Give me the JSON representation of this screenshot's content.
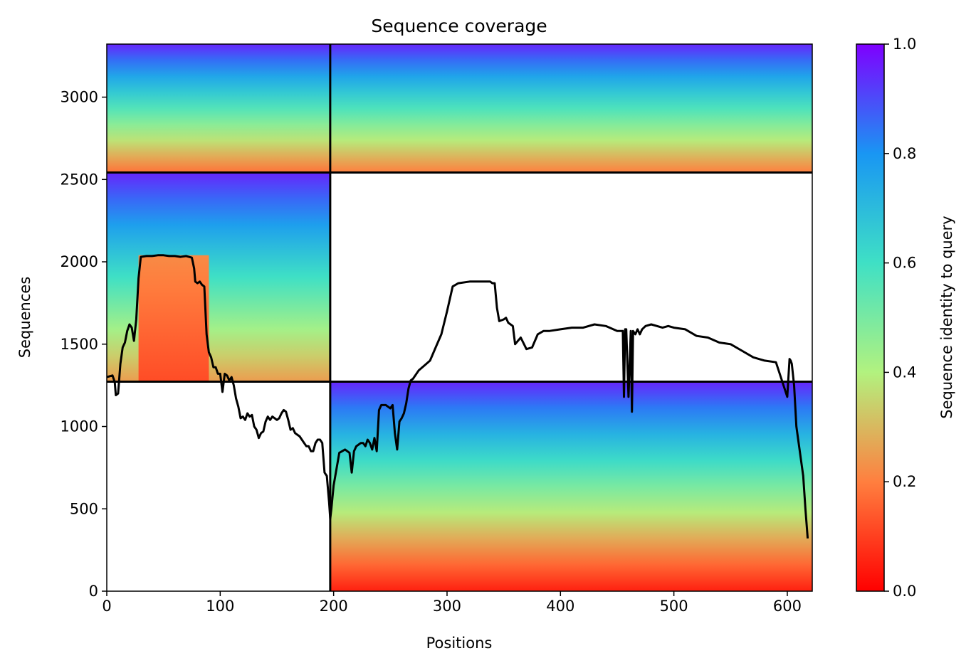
{
  "chart_data": {
    "type": "heatmap",
    "title": "Sequence coverage",
    "xlabel": "Positions",
    "ylabel": "Sequences",
    "xlim": [
      0,
      622
    ],
    "ylim": [
      0,
      3322
    ],
    "xticks": [
      "0",
      "100",
      "200",
      "300",
      "400",
      "500",
      "600"
    ],
    "xtick_values": [
      0,
      100,
      200,
      300,
      400,
      500,
      600
    ],
    "yticks": [
      "0",
      "500",
      "1000",
      "1500",
      "2000",
      "2500",
      "3000"
    ],
    "ytick_values": [
      0,
      500,
      1000,
      1500,
      2000,
      2500,
      3000
    ],
    "colorbar": {
      "label": "Sequence identity to query",
      "colormap": "rainbow_r",
      "range": [
        0.0,
        1.0
      ],
      "ticks": [
        "0.0",
        "0.2",
        "0.4",
        "0.6",
        "0.8",
        "1.0"
      ],
      "tick_values": [
        0.0,
        0.2,
        0.4,
        0.6,
        0.8,
        1.0
      ],
      "colors": [
        "#ff0000",
        "#ff7f3f",
        "#b2f27f",
        "#3fe0c5",
        "#1996f3",
        "#7f00ff"
      ]
    },
    "chain_boundaries": {
      "positions": [
        197
      ],
      "sequences": [
        1272,
        2542
      ]
    },
    "blocks": [
      {
        "name": "block-chain1-top",
        "x": [
          0,
          197
        ],
        "y": [
          2542,
          3322
        ],
        "identity_top": 0.95,
        "identity_bottom": 0.18
      },
      {
        "name": "block-chain2-top",
        "x": [
          197,
          622
        ],
        "y": [
          2542,
          3322
        ],
        "identity_top": 0.95,
        "identity_bottom": 0.2
      },
      {
        "name": "block-chain1-mid",
        "x": [
          0,
          197
        ],
        "y": [
          1272,
          2542
        ],
        "identity_top": 0.95,
        "identity_bottom": 0.25
      },
      {
        "name": "block-chain1-low-id",
        "x": [
          28,
          90
        ],
        "y": [
          1272,
          2040
        ],
        "identity_top": 0.22,
        "identity_bottom": 0.12
      },
      {
        "name": "block-chain2-bottom",
        "x": [
          197,
          622
        ],
        "y": [
          0,
          1272
        ],
        "identity_top": 0.95,
        "identity_bottom": 0.05
      }
    ],
    "coverage_line": {
      "x": [
        0,
        5,
        7,
        8,
        10,
        12,
        14,
        16,
        18,
        20,
        22,
        24,
        26,
        28,
        30,
        35,
        40,
        45,
        50,
        55,
        60,
        65,
        70,
        75,
        77,
        78,
        80,
        82,
        84,
        86,
        88,
        90,
        92,
        94,
        96,
        98,
        100,
        102,
        104,
        106,
        108,
        110,
        112,
        114,
        116,
        118,
        120,
        122,
        124,
        126,
        128,
        130,
        132,
        134,
        136,
        138,
        140,
        142,
        144,
        146,
        148,
        150,
        152,
        154,
        156,
        158,
        160,
        162,
        164,
        166,
        168,
        170,
        172,
        174,
        176,
        178,
        180,
        182,
        184,
        186,
        188,
        190,
        192,
        194,
        196,
        197,
        198,
        200,
        205,
        210,
        212,
        214,
        216,
        218,
        220,
        222,
        224,
        226,
        228,
        230,
        232,
        234,
        236,
        238,
        240,
        242,
        244,
        246,
        248,
        250,
        252,
        254,
        256,
        258,
        260,
        262,
        264,
        266,
        268,
        270,
        275,
        280,
        285,
        290,
        295,
        300,
        305,
        310,
        320,
        330,
        335,
        338,
        340,
        342,
        344,
        346,
        350,
        352,
        354,
        356,
        358,
        360,
        365,
        370,
        375,
        380,
        385,
        390,
        400,
        410,
        420,
        430,
        440,
        450,
        455,
        456,
        457,
        458,
        460,
        462,
        463,
        464,
        466,
        468,
        470,
        472,
        475,
        480,
        490,
        495,
        500,
        510,
        520,
        530,
        540,
        550,
        560,
        570,
        580,
        590,
        600,
        602,
        603,
        604,
        606,
        608,
        610,
        612,
        614,
        616,
        618,
        620,
        622
      ],
      "y": [
        1300,
        1310,
        1270,
        1190,
        1200,
        1380,
        1480,
        1510,
        1580,
        1620,
        1600,
        1520,
        1650,
        1900,
        2030,
        2035,
        2035,
        2040,
        2040,
        2035,
        2035,
        2030,
        2035,
        2025,
        1960,
        1880,
        1870,
        1880,
        1860,
        1850,
        1560,
        1450,
        1420,
        1360,
        1360,
        1320,
        1320,
        1210,
        1320,
        1310,
        1280,
        1300,
        1250,
        1170,
        1120,
        1050,
        1060,
        1040,
        1080,
        1060,
        1070,
        1000,
        980,
        930,
        960,
        970,
        1030,
        1060,
        1040,
        1060,
        1050,
        1040,
        1050,
        1080,
        1100,
        1090,
        1040,
        980,
        990,
        960,
        950,
        940,
        920,
        900,
        880,
        880,
        850,
        850,
        900,
        920,
        920,
        900,
        720,
        700,
        540,
        440,
        500,
        640,
        840,
        860,
        850,
        840,
        720,
        850,
        880,
        890,
        900,
        900,
        880,
        920,
        900,
        860,
        930,
        850,
        1100,
        1130,
        1130,
        1130,
        1120,
        1110,
        1130,
        960,
        860,
        1030,
        1050,
        1080,
        1140,
        1230,
        1280,
        1290,
        1340,
        1370,
        1400,
        1480,
        1560,
        1700,
        1850,
        1870,
        1880,
        1880,
        1880,
        1880,
        1870,
        1870,
        1720,
        1640,
        1650,
        1660,
        1630,
        1620,
        1610,
        1500,
        1540,
        1470,
        1480,
        1560,
        1580,
        1580,
        1590,
        1600,
        1600,
        1620,
        1610,
        1580,
        1580,
        1180,
        1590,
        1590,
        1180,
        1580,
        1090,
        1580,
        1560,
        1590,
        1560,
        1590,
        1610,
        1620,
        1600,
        1610,
        1600,
        1590,
        1550,
        1540,
        1510,
        1500,
        1460,
        1420,
        1400,
        1390,
        1180,
        1410,
        1400,
        1380,
        1250,
        1000,
        900,
        800,
        700,
        500,
        320
      ]
    }
  }
}
